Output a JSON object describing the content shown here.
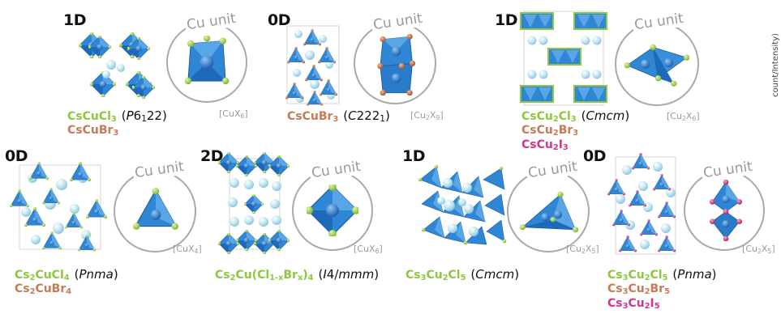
{
  "side_note": "count/Intensity)",
  "unit_label": "Cu unit",
  "colors": {
    "green": "#8dc73f",
    "brown": "#c47b5a",
    "pink": "#d1378f",
    "octa": "#2f86d4",
    "octa_light": "#6fb3ea",
    "ion": "#bfe4f0",
    "cu": "#1f66b5"
  },
  "panels": [
    {
      "dim": "1D",
      "unit_formula": "[CuX6]",
      "compounds": [
        {
          "text": "CsCuCl3",
          "color": "green",
          "sg": "(P6122)"
        },
        {
          "text": "CsCuBr3",
          "color": "brown",
          "sg": ""
        }
      ]
    },
    {
      "dim": "0D",
      "unit_formula": "[Cu2X9]",
      "compounds": [
        {
          "text": "CsCuBr3",
          "color": "brown",
          "sg": "(C2221)"
        }
      ]
    },
    {
      "dim": "1D",
      "unit_formula": "[Cu2X6]",
      "compounds": [
        {
          "text": "CsCu2Cl3",
          "color": "green",
          "sg": "(Cmcm)"
        },
        {
          "text": "CsCu2Br3",
          "color": "brown",
          "sg": ""
        },
        {
          "text": "CsCu2I3",
          "color": "pink",
          "sg": ""
        }
      ]
    },
    {
      "dim": "0D",
      "unit_formula": "[CuX4]",
      "compounds": [
        {
          "text": "Cs2CuCl4",
          "color": "green",
          "sg": "(Pnma)"
        },
        {
          "text": "Cs2CuBr4",
          "color": "brown",
          "sg": ""
        }
      ]
    },
    {
      "dim": "2D",
      "unit_formula": "[CuX6]",
      "compounds": [
        {
          "text": "Cs2Cu(Cl1-xBrx)4",
          "color": "green",
          "sg": "(I4/mmm)"
        }
      ]
    },
    {
      "dim": "1D",
      "unit_formula": "[Cu2X5]",
      "compounds": [
        {
          "text": "Cs3Cu2Cl5",
          "color": "green",
          "sg": "(Cmcm)"
        }
      ]
    },
    {
      "dim": "0D",
      "unit_formula": "[Cu2X5]",
      "compounds": [
        {
          "text": "Cs3Cu2Cl5",
          "color": "green",
          "sg": "(Pnma)"
        },
        {
          "text": "Cs3Cu2Br5",
          "color": "brown",
          "sg": ""
        },
        {
          "text": "Cs3Cu2I5",
          "color": "pink",
          "sg": ""
        }
      ]
    }
  ]
}
